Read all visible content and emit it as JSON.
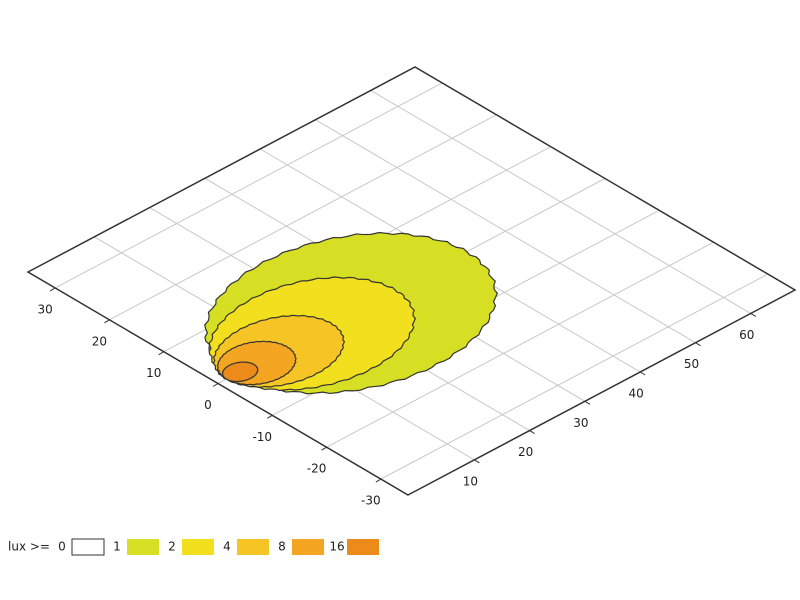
{
  "chart_data": {
    "type": "contour",
    "xlim": [
      -2,
      68
    ],
    "xticks": [
      10,
      20,
      30,
      40,
      50,
      60
    ],
    "ylim": [
      -35,
      35
    ],
    "yticks": [
      30,
      20,
      10,
      0,
      -10,
      -20,
      -30
    ],
    "grid": true,
    "legend_title": "lux >=",
    "levels": [
      0,
      1,
      2,
      4,
      8,
      16
    ],
    "colors": [
      "#ffffff",
      "#d6df23",
      "#f2e01e",
      "#f6c424",
      "#f4a521",
      "#ec8b1a"
    ],
    "x_center": [
      null,
      22,
      15,
      9,
      5,
      2
    ],
    "x_radius": [
      null,
      21,
      15,
      9.5,
      5.5,
      2.5
    ],
    "y_radius": [
      null,
      16,
      11,
      7,
      4.5,
      2
    ]
  }
}
